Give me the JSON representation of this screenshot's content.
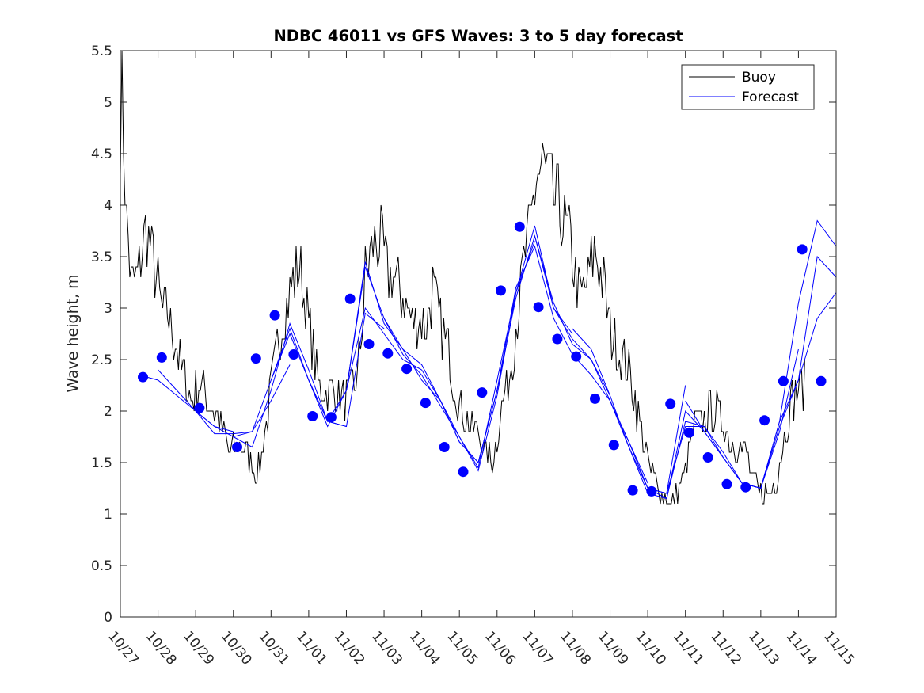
{
  "chart_data": {
    "type": "line",
    "title": "NDBC 46011 vs GFS Waves: 3 to 5 day forecast",
    "xlabel": "",
    "ylabel": "Wave height, m",
    "xlim": [
      0,
      19
    ],
    "ylim": [
      0,
      5.5
    ],
    "yticks": [
      0,
      0.5,
      1,
      1.5,
      2,
      2.5,
      3,
      3.5,
      4,
      4.5,
      5,
      5.5
    ],
    "ytick_labels": [
      "0",
      "0.5",
      "1",
      "1.5",
      "2",
      "2.5",
      "3",
      "3.5",
      "4",
      "4.5",
      "5",
      "5.5"
    ],
    "xticks": [
      0,
      1,
      2,
      3,
      4,
      5,
      6,
      7,
      8,
      9,
      10,
      11,
      12,
      13,
      14,
      15,
      16,
      17,
      18,
      19
    ],
    "xtick_labels": [
      "10/27",
      "10/28",
      "10/29",
      "10/30",
      "10/31",
      "11/01",
      "11/02",
      "11/03",
      "11/04",
      "11/05",
      "11/06",
      "11/07",
      "11/08",
      "11/09",
      "11/10",
      "11/11",
      "11/12",
      "11/13",
      "11/14",
      "11/15"
    ],
    "legend": {
      "placement": "top-right",
      "entries": [
        {
          "label": "Buoy",
          "color": "#000000"
        },
        {
          "label": "Forecast",
          "color": "#0000ff"
        }
      ]
    },
    "series": [
      {
        "name": "Buoy",
        "color": "#000000",
        "envelope": [
          [
            0.0,
            4.8
          ],
          [
            0.05,
            5.1
          ],
          [
            0.15,
            3.9
          ],
          [
            0.3,
            3.2
          ],
          [
            0.5,
            3.4
          ],
          [
            0.7,
            3.8
          ],
          [
            0.9,
            3.4
          ],
          [
            1.1,
            3.0
          ],
          [
            1.3,
            2.9
          ],
          [
            1.5,
            2.6
          ],
          [
            1.7,
            2.3
          ],
          [
            1.9,
            2.1
          ],
          [
            2.1,
            2.3
          ],
          [
            2.3,
            2.1
          ],
          [
            2.5,
            2.0
          ],
          [
            2.7,
            1.8
          ],
          [
            2.9,
            1.6
          ],
          [
            3.1,
            1.65
          ],
          [
            3.3,
            1.6
          ],
          [
            3.5,
            1.5
          ],
          [
            3.65,
            1.4
          ],
          [
            3.8,
            1.7
          ],
          [
            4.0,
            2.2
          ],
          [
            4.2,
            2.7
          ],
          [
            4.4,
            3.0
          ],
          [
            4.6,
            3.3
          ],
          [
            4.75,
            3.4
          ],
          [
            4.9,
            3.1
          ],
          [
            5.1,
            2.6
          ],
          [
            5.3,
            2.2
          ],
          [
            5.5,
            2.2
          ],
          [
            5.7,
            2.2
          ],
          [
            5.9,
            2.1
          ],
          [
            6.1,
            2.2
          ],
          [
            6.3,
            2.3
          ],
          [
            6.5,
            3.3
          ],
          [
            6.7,
            3.6
          ],
          [
            6.9,
            3.7
          ],
          [
            7.1,
            3.3
          ],
          [
            7.3,
            3.3
          ],
          [
            7.5,
            3.1
          ],
          [
            7.7,
            2.9
          ],
          [
            7.9,
            2.9
          ],
          [
            8.1,
            2.8
          ],
          [
            8.3,
            3.2
          ],
          [
            8.5,
            2.8
          ],
          [
            8.7,
            2.6
          ],
          [
            8.9,
            2.2
          ],
          [
            9.1,
            2.0
          ],
          [
            9.3,
            1.8
          ],
          [
            9.5,
            1.8
          ],
          [
            9.7,
            1.6
          ],
          [
            9.9,
            1.5
          ],
          [
            10.1,
            2.0
          ],
          [
            10.3,
            2.3
          ],
          [
            10.5,
            2.8
          ],
          [
            10.7,
            3.4
          ],
          [
            10.9,
            3.8
          ],
          [
            11.05,
            4.3
          ],
          [
            11.2,
            4.4
          ],
          [
            11.4,
            4.2
          ],
          [
            11.6,
            4.0
          ],
          [
            11.8,
            3.8
          ],
          [
            12.0,
            3.5
          ],
          [
            12.2,
            3.1
          ],
          [
            12.4,
            3.2
          ],
          [
            12.6,
            3.6
          ],
          [
            12.8,
            3.3
          ],
          [
            13.0,
            2.8
          ],
          [
            13.2,
            2.6
          ],
          [
            13.4,
            2.5
          ],
          [
            13.6,
            2.2
          ],
          [
            13.8,
            1.9
          ],
          [
            14.0,
            1.5
          ],
          [
            14.2,
            1.3
          ],
          [
            14.4,
            1.2
          ],
          [
            14.6,
            1.1
          ],
          [
            14.8,
            1.2
          ],
          [
            15.0,
            1.4
          ],
          [
            15.2,
            1.8
          ],
          [
            15.4,
            1.9
          ],
          [
            15.6,
            2.0
          ],
          [
            15.8,
            2.0
          ],
          [
            16.0,
            1.9
          ],
          [
            16.2,
            1.7
          ],
          [
            16.4,
            1.7
          ],
          [
            16.6,
            1.6
          ],
          [
            16.8,
            1.3
          ],
          [
            17.0,
            1.2
          ],
          [
            17.2,
            1.2
          ],
          [
            17.4,
            1.3
          ],
          [
            17.6,
            1.7
          ],
          [
            17.8,
            2.1
          ],
          [
            18.0,
            2.2
          ],
          [
            18.2,
            2.3
          ]
        ]
      },
      {
        "name": "Forecast",
        "color": "#0000ff",
        "runs": [
          {
            "x": [
              0.5,
              1.0,
              1.5,
              2.0,
              2.5,
              3.0
            ],
            "y": [
              2.35,
              2.3,
              2.15,
              2.0,
              1.85,
              1.8
            ]
          },
          {
            "x": [
              1.0,
              1.5,
              2.0,
              2.5,
              3.0,
              3.5,
              4.0,
              4.5
            ],
            "y": [
              2.4,
              2.2,
              2.0,
              1.78,
              1.78,
              1.8,
              2.1,
              2.45
            ]
          },
          {
            "x": [
              2.0,
              2.5,
              3.0,
              3.5,
              4.0,
              4.5,
              5.0,
              5.5,
              6.0
            ],
            "y": [
              2.0,
              1.85,
              1.75,
              1.8,
              2.3,
              2.8,
              2.3,
              1.9,
              1.85
            ]
          },
          {
            "x": [
              3.0,
              3.5,
              4.0,
              4.5,
              5.0,
              5.5,
              6.0,
              6.5,
              7.0
            ],
            "y": [
              1.75,
              1.65,
              2.2,
              2.85,
              2.4,
              1.9,
              1.85,
              2.95,
              2.8
            ]
          },
          {
            "x": [
              4.0,
              4.5,
              5.0,
              5.5,
              6.0,
              6.5,
              7.0,
              7.5,
              8.0
            ],
            "y": [
              2.3,
              2.75,
              2.3,
              1.85,
              2.2,
              3.0,
              2.75,
              2.5,
              2.4
            ]
          },
          {
            "x": [
              5.0,
              5.5,
              6.0,
              6.5,
              7.0,
              7.5,
              8.0,
              8.5,
              9.0
            ],
            "y": [
              2.3,
              1.9,
              2.2,
              3.4,
              2.9,
              2.6,
              2.45,
              2.1,
              1.75
            ]
          },
          {
            "x": [
              6.0,
              6.5,
              7.0,
              7.5,
              8.0,
              8.5,
              9.0,
              9.5,
              10.0
            ],
            "y": [
              2.2,
              3.45,
              2.85,
              2.6,
              2.3,
              2.1,
              1.7,
              1.5,
              2.2
            ]
          },
          {
            "x": [
              7.0,
              7.5,
              8.0,
              8.5,
              9.0,
              9.5,
              10.0,
              10.5,
              11.0
            ],
            "y": [
              2.9,
              2.55,
              2.35,
              2.05,
              1.75,
              1.45,
              2.3,
              3.15,
              3.65
            ]
          },
          {
            "x": [
              8.0,
              8.5,
              9.0,
              9.5,
              10.0,
              10.5,
              11.0,
              11.5,
              12.0
            ],
            "y": [
              2.4,
              2.1,
              1.7,
              1.5,
              2.2,
              3.1,
              3.7,
              3.0,
              2.75
            ]
          },
          {
            "x": [
              9.0,
              9.5,
              10.0,
              10.5,
              11.0,
              11.5,
              12.0,
              12.5,
              13.0
            ],
            "y": [
              1.75,
              1.42,
              2.15,
              3.15,
              3.8,
              3.0,
              2.7,
              2.5,
              2.15
            ]
          },
          {
            "x": [
              10.0,
              10.5,
              11.0,
              11.5,
              12.0,
              12.5,
              13.0,
              13.5,
              14.0
            ],
            "y": [
              2.2,
              3.2,
              3.6,
              2.9,
              2.55,
              2.35,
              2.1,
              1.7,
              1.3
            ]
          },
          {
            "x": [
              11.0,
              11.5,
              12.0,
              12.5,
              13.0,
              13.5,
              14.0,
              14.5,
              15.0
            ],
            "y": [
              3.7,
              3.05,
              2.65,
              2.5,
              2.1,
              1.65,
              1.25,
              1.2,
              2.25
            ]
          },
          {
            "x": [
              12.0,
              12.5,
              13.0,
              13.5,
              14.0,
              14.5,
              15.0,
              15.5,
              16.0
            ],
            "y": [
              2.8,
              2.6,
              2.15,
              1.65,
              1.2,
              1.15,
              1.9,
              1.85,
              1.6
            ]
          },
          {
            "x": [
              13.0,
              13.5,
              14.0,
              14.5,
              15.0,
              15.5,
              16.0,
              16.5,
              17.0
            ],
            "y": [
              2.1,
              1.7,
              1.25,
              1.15,
              2.0,
              1.8,
              1.55,
              1.3,
              1.25
            ]
          },
          {
            "x": [
              14.0,
              14.5,
              15.0,
              15.5,
              16.0,
              16.5,
              17.0,
              17.5,
              18.0
            ],
            "y": [
              1.25,
              1.2,
              1.85,
              1.85,
              1.55,
              1.3,
              1.25,
              1.8,
              2.6
            ]
          },
          {
            "x": [
              15.0,
              15.5,
              16.0,
              16.5,
              17.0,
              17.5,
              18.0,
              18.5,
              19.0
            ],
            "y": [
              2.1,
              1.8,
              1.55,
              1.3,
              1.25,
              1.9,
              3.05,
              3.85,
              3.6
            ]
          },
          {
            "x": [
              16.0,
              16.5,
              17.0,
              17.5,
              18.0,
              18.5,
              19.0
            ],
            "y": [
              1.6,
              1.3,
              1.25,
              1.85,
              2.3,
              3.5,
              3.3
            ]
          },
          {
            "x": [
              17.0,
              17.5,
              18.0,
              18.5,
              19.0
            ],
            "y": [
              1.25,
              1.9,
              2.3,
              2.9,
              3.15
            ]
          }
        ],
        "markers": {
          "x": [
            0.6,
            1.1,
            2.1,
            3.1,
            3.6,
            4.1,
            4.6,
            5.1,
            5.6,
            6.1,
            6.6,
            7.1,
            7.6,
            8.1,
            8.6,
            9.1,
            9.6,
            10.1,
            10.6,
            11.1,
            11.6,
            12.1,
            12.6,
            13.1,
            13.6,
            14.1,
            14.6,
            15.1,
            15.6,
            16.1,
            16.6,
            17.1,
            17.6,
            18.1,
            18.6
          ],
          "y": [
            2.33,
            2.52,
            2.03,
            1.65,
            2.51,
            2.93,
            2.55,
            1.95,
            1.94,
            3.09,
            2.65,
            2.56,
            2.41,
            2.08,
            1.65,
            1.41,
            2.18,
            3.17,
            3.79,
            3.01,
            2.7,
            2.53,
            2.12,
            1.67,
            1.23,
            1.22,
            2.07,
            1.79,
            1.55,
            1.29,
            1.26,
            1.91,
            2.29,
            3.57,
            2.29
          ]
        }
      }
    ]
  }
}
